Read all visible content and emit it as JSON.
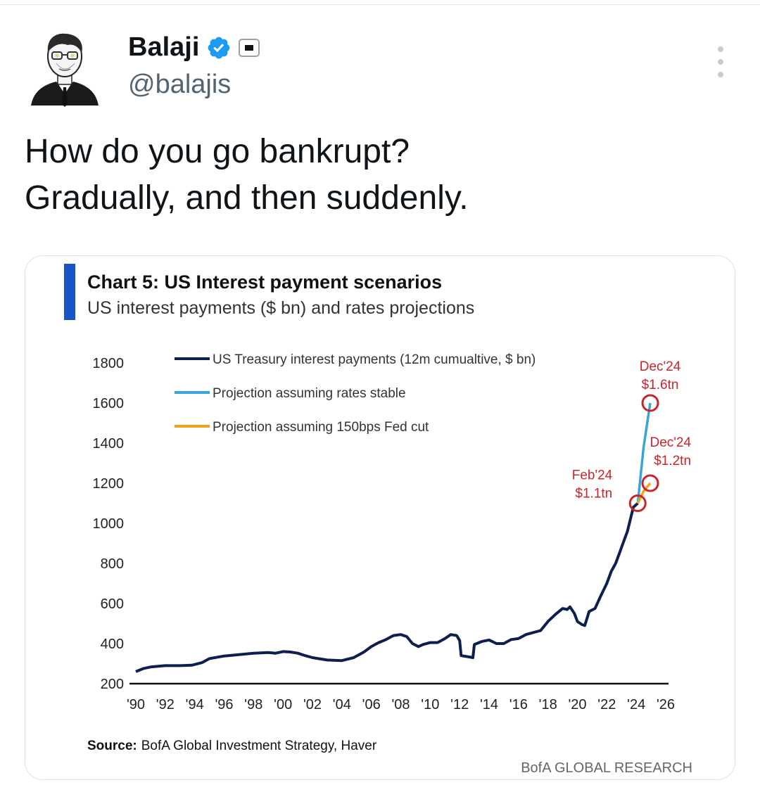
{
  "tweet": {
    "author_name": "Balaji",
    "author_handle": "@balajis",
    "text_lines": [
      "How do you go bankrupt?",
      "Gradually, and then suddenly."
    ]
  },
  "icons": {
    "verified": "verified-badge-icon",
    "affiliation": "affiliation-badge-icon",
    "more": "more-options-icon"
  },
  "colors": {
    "history": "#0d1f4f",
    "stable": "#3aa4d6",
    "cut": "#f2a21a",
    "annotation": "#c8252b",
    "accent_bar": "#1556c4"
  },
  "chart_data": {
    "type": "line",
    "title": "Chart 5: US Interest payment scenarios",
    "subtitle": "US interest payments ($ bn) and rates projections",
    "yticks": [
      "1800",
      "1600",
      "1400",
      "1200",
      "1000",
      "800",
      "600",
      "400",
      "200"
    ],
    "xticks": [
      "'90",
      "'92",
      "'94",
      "'96",
      "'98",
      "'00",
      "'02",
      "'04",
      "'06",
      "'08",
      "'10",
      "'12",
      "'14",
      "'16",
      "'18",
      "'20",
      "'22",
      "'24",
      "'26"
    ],
    "ylim": [
      200,
      1800
    ],
    "xlim": [
      1990,
      2026
    ],
    "legend": [
      "US Treasury interest payments (12m cumualtive, $ bn)",
      "Projection assuming rates stable",
      "Projection assuming 150bps Fed cut"
    ],
    "series": [
      {
        "name": "US Treasury interest payments (12m cumualtive, $ bn)",
        "points": [
          [
            1990.0,
            260
          ],
          [
            1990.5,
            275
          ],
          [
            1991.0,
            283
          ],
          [
            1992.0,
            290
          ],
          [
            1993.0,
            290
          ],
          [
            1993.8,
            292
          ],
          [
            1994.5,
            305
          ],
          [
            1995.0,
            325
          ],
          [
            1996.0,
            338
          ],
          [
            1997.0,
            345
          ],
          [
            1998.0,
            352
          ],
          [
            1999.0,
            355
          ],
          [
            1999.5,
            352
          ],
          [
            2000.0,
            360
          ],
          [
            2000.5,
            358
          ],
          [
            2001.0,
            352
          ],
          [
            2001.5,
            340
          ],
          [
            2002.0,
            330
          ],
          [
            2003.0,
            318
          ],
          [
            2004.0,
            315
          ],
          [
            2004.8,
            330
          ],
          [
            2005.5,
            358
          ],
          [
            2006.0,
            385
          ],
          [
            2006.5,
            405
          ],
          [
            2007.0,
            420
          ],
          [
            2007.5,
            440
          ],
          [
            2008.0,
            445
          ],
          [
            2008.4,
            435
          ],
          [
            2008.8,
            400
          ],
          [
            2009.2,
            385
          ],
          [
            2009.5,
            395
          ],
          [
            2010.0,
            405
          ],
          [
            2010.5,
            405
          ],
          [
            2011.0,
            425
          ],
          [
            2011.4,
            445
          ],
          [
            2011.8,
            440
          ],
          [
            2012.0,
            415
          ],
          [
            2012.1,
            340
          ],
          [
            2012.5,
            335
          ],
          [
            2012.9,
            330
          ],
          [
            2013.0,
            395
          ],
          [
            2013.5,
            410
          ],
          [
            2014.0,
            418
          ],
          [
            2014.5,
            400
          ],
          [
            2015.0,
            400
          ],
          [
            2015.5,
            420
          ],
          [
            2016.0,
            425
          ],
          [
            2016.5,
            445
          ],
          [
            2017.0,
            455
          ],
          [
            2017.5,
            465
          ],
          [
            2018.0,
            510
          ],
          [
            2018.5,
            545
          ],
          [
            2019.0,
            575
          ],
          [
            2019.3,
            570
          ],
          [
            2019.5,
            583
          ],
          [
            2019.8,
            550
          ],
          [
            2020.0,
            510
          ],
          [
            2020.3,
            495
          ],
          [
            2020.5,
            490
          ],
          [
            2020.8,
            560
          ],
          [
            2021.2,
            575
          ],
          [
            2021.6,
            640
          ],
          [
            2022.0,
            700
          ],
          [
            2022.3,
            760
          ],
          [
            2022.6,
            800
          ],
          [
            2022.9,
            860
          ],
          [
            2023.1,
            900
          ],
          [
            2023.4,
            960
          ],
          [
            2023.6,
            1020
          ],
          [
            2023.8,
            1080
          ],
          [
            2024.1,
            1100
          ]
        ]
      },
      {
        "name": "Projection assuming rates stable",
        "points": [
          [
            2024.1,
            1100
          ],
          [
            2024.5,
            1380
          ],
          [
            2024.95,
            1600
          ]
        ]
      },
      {
        "name": "Projection assuming 150bps Fed cut",
        "points": [
          [
            2024.1,
            1100
          ],
          [
            2024.5,
            1160
          ],
          [
            2024.95,
            1200
          ]
        ]
      }
    ],
    "annotations": [
      {
        "lines": [
          "Dec'24",
          "$1.6tn"
        ],
        "x": 2024.95,
        "y": 1600
      },
      {
        "lines": [
          "Dec'24",
          "$1.2tn"
        ],
        "x": 2024.95,
        "y": 1200
      },
      {
        "lines": [
          "Feb'24",
          "$1.1tn"
        ],
        "x": 2024.1,
        "y": 1100
      }
    ],
    "source_label": "Source:",
    "source_text": "BofA Global Investment Strategy, Haver",
    "footer": "BofA GLOBAL RESEARCH"
  }
}
